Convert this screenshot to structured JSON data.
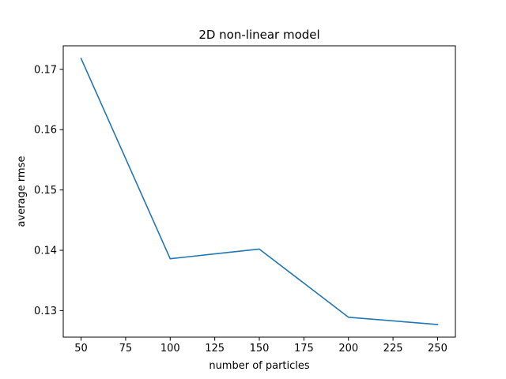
{
  "chart_data": {
    "type": "line",
    "title": "2D non-linear model",
    "xlabel": "number of particles",
    "ylabel": "average rmse",
    "xlim": [
      40,
      260
    ],
    "ylim": [
      0.1256,
      0.1739
    ],
    "x_ticks": [
      50,
      75,
      100,
      125,
      150,
      175,
      200,
      225,
      250
    ],
    "y_ticks": [
      0.13,
      0.14,
      0.15,
      0.16,
      0.17
    ],
    "x_tick_labels": [
      "50",
      "75",
      "100",
      "125",
      "150",
      "175",
      "200",
      "225",
      "250"
    ],
    "y_tick_labels": [
      "0.13",
      "0.14",
      "0.15",
      "0.16",
      "0.17"
    ],
    "grid": false,
    "series": [
      {
        "color": "#1f77b4",
        "x": [
          50,
          100,
          150,
          200,
          250
        ],
        "y": [
          0.1718,
          0.1386,
          0.1402,
          0.1289,
          0.1277
        ]
      }
    ]
  }
}
